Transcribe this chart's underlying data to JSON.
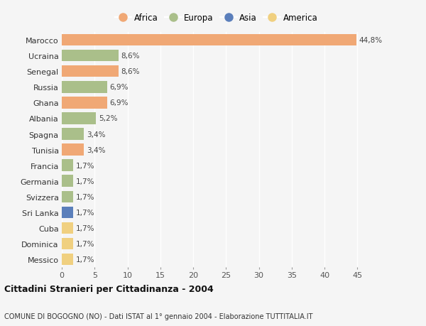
{
  "countries": [
    "Marocco",
    "Ucraina",
    "Senegal",
    "Russia",
    "Ghana",
    "Albania",
    "Spagna",
    "Tunisia",
    "Francia",
    "Germania",
    "Svizzera",
    "Sri Lanka",
    "Cuba",
    "Dominica",
    "Messico"
  ],
  "values": [
    44.8,
    8.6,
    8.6,
    6.9,
    6.9,
    5.2,
    3.4,
    3.4,
    1.7,
    1.7,
    1.7,
    1.7,
    1.7,
    1.7,
    1.7
  ],
  "labels": [
    "44,8%",
    "8,6%",
    "8,6%",
    "6,9%",
    "6,9%",
    "5,2%",
    "3,4%",
    "3,4%",
    "1,7%",
    "1,7%",
    "1,7%",
    "1,7%",
    "1,7%",
    "1,7%",
    "1,7%"
  ],
  "continents": [
    "Africa",
    "Europa",
    "Africa",
    "Europa",
    "Africa",
    "Europa",
    "Europa",
    "Africa",
    "Europa",
    "Europa",
    "Europa",
    "Asia",
    "America",
    "America",
    "America"
  ],
  "colors": {
    "Africa": "#F0A875",
    "Europa": "#AABF8A",
    "Asia": "#5B7FBB",
    "America": "#F0D080"
  },
  "legend_order": [
    "Africa",
    "Europa",
    "Asia",
    "America"
  ],
  "title1": "Cittadini Stranieri per Cittadinanza - 2004",
  "title2": "COMUNE DI BOGOGNO (NO) - Dati ISTAT al 1° gennaio 2004 - Elaborazione TUTTITALIA.IT",
  "xlim": [
    0,
    47
  ],
  "xticks": [
    0,
    5,
    10,
    15,
    20,
    25,
    30,
    35,
    40,
    45
  ],
  "background_color": "#F5F5F5",
  "grid_color": "#FFFFFF",
  "bar_height": 0.75
}
